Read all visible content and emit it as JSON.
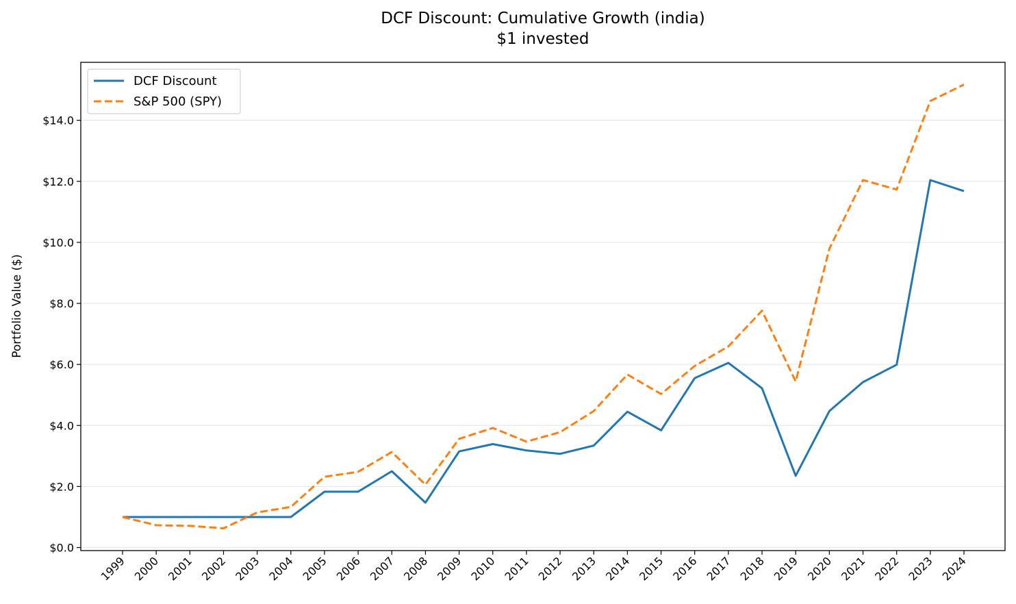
{
  "chart_data": {
    "type": "line",
    "title": "DCF Discount: Cumulative Growth (india)",
    "subtitle": "$1 invested",
    "xlabel": "",
    "ylabel": "Portfolio Value ($)",
    "x": [
      "1999",
      "2000",
      "2001",
      "2002",
      "2003",
      "2004",
      "2005",
      "2006",
      "2007",
      "2008",
      "2009",
      "2010",
      "2011",
      "2012",
      "2013",
      "2014",
      "2015",
      "2016",
      "2017",
      "2018",
      "2019",
      "2020",
      "2021",
      "2022",
      "2023",
      "2024"
    ],
    "ylim": [
      -0.1,
      15.9
    ],
    "yticks": [
      0,
      2,
      4,
      6,
      8,
      10,
      12,
      14
    ],
    "ytick_labels": [
      "$0.0",
      "$2.0",
      "$4.0",
      "$6.0",
      "$8.0",
      "$10.0",
      "$12.0",
      "$14.0"
    ],
    "grid": "horizontal",
    "legend_position": "top-left",
    "series": [
      {
        "name": "DCF Discount",
        "color": "#1f77b4",
        "style": "solid",
        "values": [
          1.0,
          1.0,
          1.0,
          1.0,
          1.0,
          1.0,
          1.83,
          1.83,
          2.5,
          1.47,
          3.15,
          3.39,
          3.18,
          3.07,
          3.34,
          4.45,
          3.84,
          5.55,
          6.05,
          5.22,
          2.35,
          4.47,
          5.42,
          5.99,
          12.04,
          11.68
        ]
      },
      {
        "name": "S&P 500 (SPY)",
        "color": "#ff7f0e",
        "style": "dashed",
        "values": [
          1.0,
          0.73,
          0.71,
          0.63,
          1.15,
          1.33,
          2.32,
          2.48,
          3.13,
          2.06,
          3.56,
          3.92,
          3.47,
          3.78,
          4.47,
          5.67,
          5.03,
          5.95,
          6.59,
          7.76,
          5.44,
          9.79,
          12.04,
          11.73,
          14.63,
          15.17
        ]
      }
    ]
  }
}
